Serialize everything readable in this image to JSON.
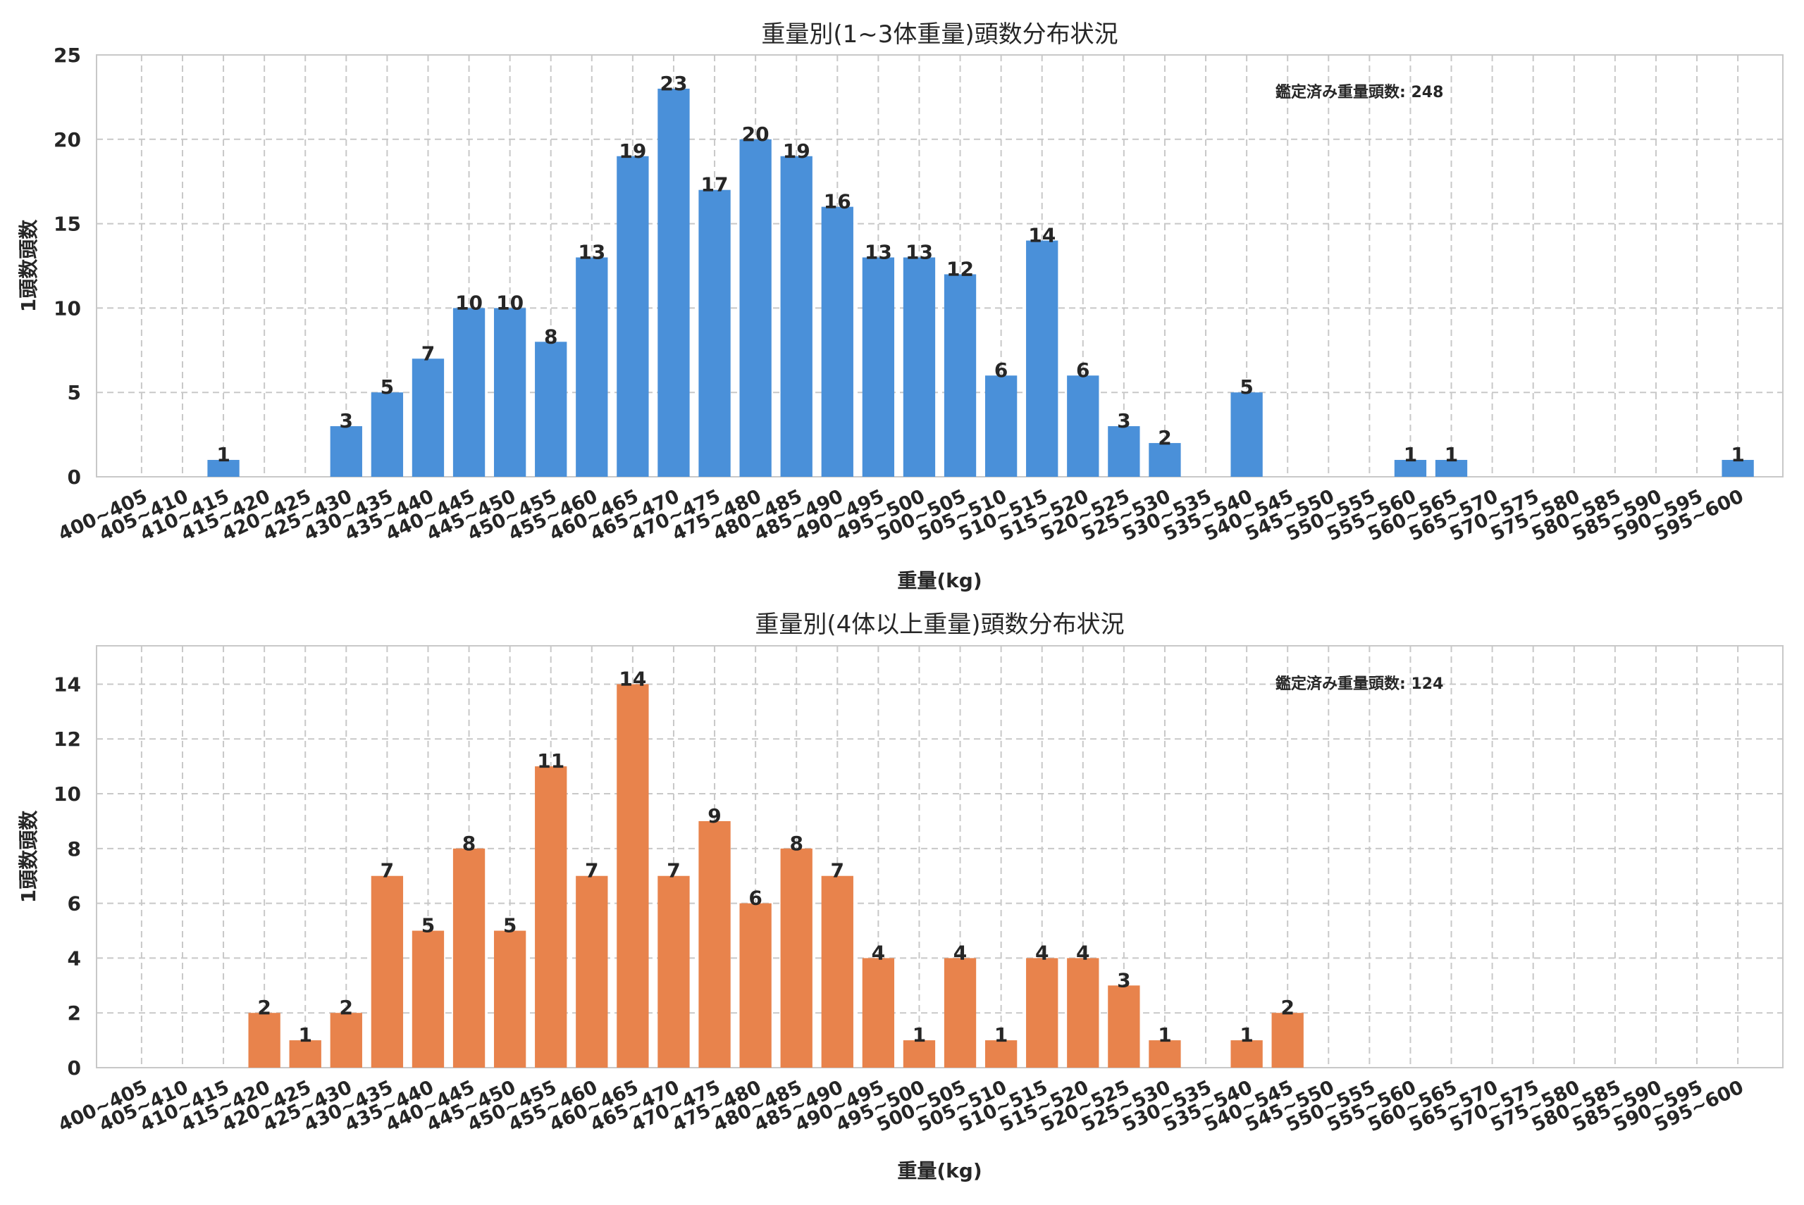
{
  "chart_data": [
    {
      "type": "bar",
      "title": "重量別(1~3体重量)頭数分布状況",
      "xlabel": "重量(kg)",
      "ylabel": "1頭数頭数",
      "ylim": [
        0,
        25
      ],
      "yticks": [
        "0",
        "5",
        "10",
        "15",
        "20",
        "25"
      ],
      "color": "#4a90d9",
      "annotation": "鑑定済み重量頭数: 248",
      "categories": [
        "400~405",
        "405~410",
        "410~415",
        "415~420",
        "420~425",
        "425~430",
        "430~435",
        "435~440",
        "440~445",
        "445~450",
        "450~455",
        "455~460",
        "460~465",
        "465~470",
        "470~475",
        "475~480",
        "480~485",
        "485~490",
        "490~495",
        "495~500",
        "500~505",
        "505~510",
        "510~515",
        "515~520",
        "520~525",
        "525~530",
        "530~535",
        "535~540",
        "540~545",
        "545~550",
        "550~555",
        "555~560",
        "560~565",
        "565~570",
        "570~575",
        "575~580",
        "580~585",
        "585~590",
        "590~595",
        "595~600"
      ],
      "values": [
        0,
        0,
        1,
        0,
        0,
        3,
        5,
        7,
        10,
        10,
        8,
        13,
        19,
        23,
        17,
        20,
        19,
        16,
        13,
        13,
        12,
        6,
        14,
        6,
        3,
        2,
        0,
        5,
        0,
        0,
        0,
        1,
        1,
        0,
        0,
        0,
        0,
        0,
        0,
        1
      ]
    },
    {
      "type": "bar",
      "title": "重量別(4体以上重量)頭数分布状況",
      "xlabel": "重量(kg)",
      "ylabel": "1頭数頭数",
      "ylim": [
        0,
        15.4
      ],
      "yticks": [
        "0",
        "2",
        "4",
        "6",
        "8",
        "10",
        "12",
        "14"
      ],
      "color": "#e8834c",
      "annotation": "鑑定済み重量頭数: 124",
      "categories": [
        "400~405",
        "405~410",
        "410~415",
        "415~420",
        "420~425",
        "425~430",
        "430~435",
        "435~440",
        "440~445",
        "445~450",
        "450~455",
        "455~460",
        "460~465",
        "465~470",
        "470~475",
        "475~480",
        "480~485",
        "485~490",
        "490~495",
        "495~500",
        "500~505",
        "505~510",
        "510~515",
        "515~520",
        "520~525",
        "525~530",
        "530~535",
        "535~540",
        "540~545",
        "545~550",
        "550~555",
        "555~560",
        "560~565",
        "565~570",
        "570~575",
        "575~580",
        "580~585",
        "585~590",
        "590~595",
        "595~600"
      ],
      "values": [
        0,
        0,
        0,
        2,
        1,
        2,
        7,
        5,
        8,
        5,
        11,
        7,
        14,
        7,
        9,
        6,
        8,
        7,
        4,
        1,
        4,
        1,
        4,
        4,
        3,
        1,
        0,
        1,
        2,
        0,
        0,
        0,
        0,
        0,
        0,
        0,
        0,
        0,
        0,
        0
      ]
    }
  ]
}
